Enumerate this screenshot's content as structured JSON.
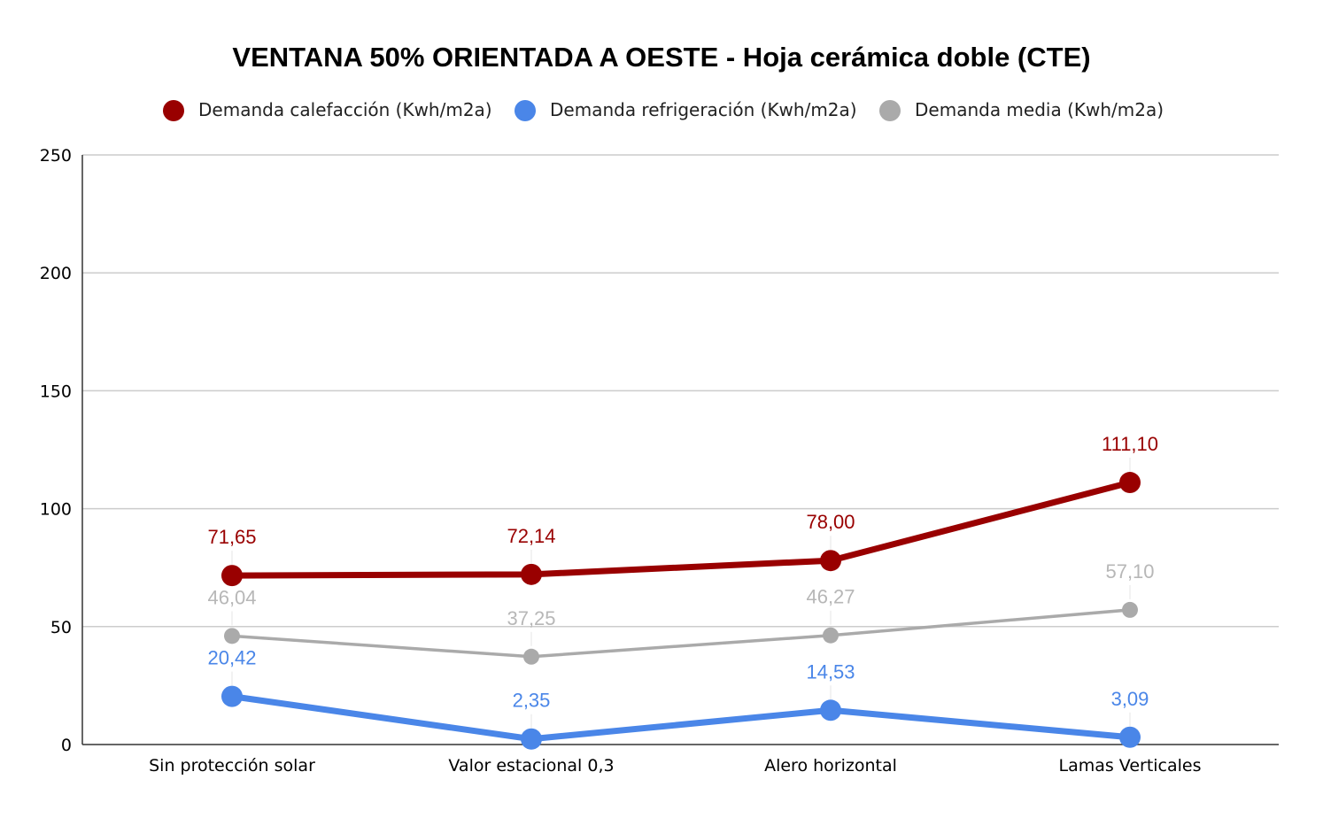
{
  "chart_data": {
    "type": "line",
    "title": "VENTANA 50% ORIENTADA A OESTE - Hoja cerámica doble (CTE)",
    "categories": [
      "Sin protección solar",
      "Valor estacional 0,3",
      "Alero horizontal",
      "Lamas Verticales"
    ],
    "ylim": [
      0,
      250
    ],
    "yticks": [
      0,
      50,
      100,
      150,
      200,
      250
    ],
    "ytick_labels": [
      "0",
      "50",
      "100",
      "150",
      "200",
      "250"
    ],
    "grid": true,
    "legend_position": "top",
    "series": [
      {
        "name": "Demanda calefacción (Kwh/m2a)",
        "color": "#990000",
        "values": [
          71.65,
          72.14,
          78.0,
          111.1
        ],
        "labels": [
          "71,65",
          "72,14",
          "78,00",
          "111,10"
        ]
      },
      {
        "name": "Demanda refrigeración (Kwh/m2a)",
        "color": "#4a86e8",
        "values": [
          20.42,
          2.35,
          14.53,
          3.09
        ],
        "labels": [
          "20,42",
          "2,35",
          "14,53",
          "3,09"
        ]
      },
      {
        "name": "Demanda media (Kwh/m2a)",
        "color": "#aaaaaa",
        "label_color": "#b7b7b7",
        "values": [
          46.04,
          37.25,
          46.27,
          57.1
        ],
        "labels": [
          "46,04",
          "37,25",
          "46,27",
          "57,10"
        ]
      }
    ]
  }
}
